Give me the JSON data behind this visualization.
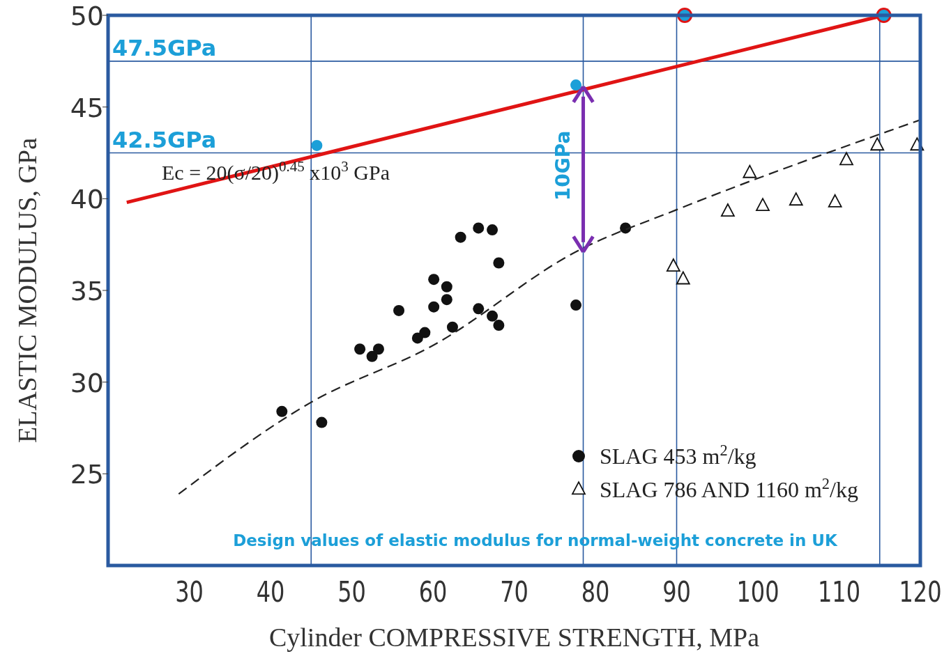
{
  "chart_data": {
    "type": "scatter",
    "xlabel": "Cylinder COMPRESSIVE STRENGTH, MPa",
    "ylabel": "ELASTIC MODULUS, GPa",
    "xlim": [
      20,
      120
    ],
    "xticks": [
      30,
      40,
      50,
      60,
      70,
      80,
      90,
      100,
      110,
      120
    ],
    "ylim": [
      20,
      50
    ],
    "yticks": [
      25,
      30,
      35,
      40,
      45,
      50
    ],
    "grid": false,
    "legend": "bottom right",
    "series": [
      {
        "name": "SLAG 453 m$^{2}$/kg",
        "type": "scatter",
        "marker": "circle",
        "color": "#111111",
        "x": [
          41.4,
          46.3,
          51.0,
          52.5,
          53.3,
          55.8,
          58.1,
          59.0,
          60.1,
          60.1,
          61.7,
          61.7,
          62.4,
          63.4,
          65.6,
          65.6,
          67.3,
          67.3,
          68.1,
          68.1,
          77.6,
          83.7
        ],
        "values": [
          28.4,
          27.8,
          31.8,
          31.4,
          31.8,
          33.9,
          32.4,
          32.7,
          35.6,
          34.1,
          35.2,
          34.5,
          33.0,
          37.9,
          38.4,
          34.0,
          38.3,
          33.6,
          36.5,
          33.1,
          34.2,
          38.4
        ]
      },
      {
        "name": "SLAG 786 AND 1160 m$^{2}$/kg",
        "type": "scatter",
        "marker": "triangle",
        "color": "#111111",
        "x": [
          89.6,
          90.8,
          96.3,
          99.0,
          100.6,
          104.7,
          109.5,
          110.9,
          114.7,
          119.6
        ],
        "values": [
          36.3,
          35.6,
          39.3,
          41.4,
          39.6,
          39.9,
          39.8,
          42.1,
          42.9,
          42.9
        ]
      },
      {
        "type": "line",
        "line_style": "dashed",
        "color": "#222222",
        "x": [
          28.7,
          45,
          60,
          78,
          90,
          120
        ],
        "values": [
          23.9,
          28.9,
          32.0,
          37.2,
          39.4,
          44.3
        ]
      },
      {
        "type": "line",
        "line_style": "solid",
        "color": "#e01414",
        "x": [
          22.3,
          115.5
        ],
        "values": [
          39.8,
          50
        ]
      },
      {
        "type": "scatter",
        "marker": "circle",
        "color": "#e01414",
        "x": [
          91,
          115.5
        ],
        "values": [
          50,
          50
        ]
      },
      {
        "type": "scatter",
        "marker": "circle",
        "color": "#1c9fd8",
        "x": [
          45.7,
          77.6,
          91,
          115.5
        ],
        "values": [
          42.9,
          46.2,
          50,
          50
        ]
      }
    ],
    "ref_lines": [
      {
        "axis": "x",
        "value": 45,
        "color": "#2a5aa0"
      },
      {
        "axis": "x",
        "value": 78.5,
        "color": "#2a5aa0"
      },
      {
        "axis": "x",
        "value": 90,
        "color": "#2a5aa0"
      },
      {
        "axis": "x",
        "value": 115,
        "color": "#2a5aa0"
      },
      {
        "axis": "y",
        "value": 47.5,
        "label": "47.5GPa",
        "color": "#2a5aa0"
      },
      {
        "axis": "y",
        "value": 42.5,
        "label": "42.5GPa",
        "color": "#2a5aa0"
      }
    ],
    "annotations": [
      "Ec = 20(σ/20)$^{0.45}$ x10$^{3}$ GPa",
      {
        "text": "10GPa",
        "x": 78.5,
        "y": 46.1
      },
      "Design values of elastic modulus for normal-weight concrete in UK"
    ]
  }
}
